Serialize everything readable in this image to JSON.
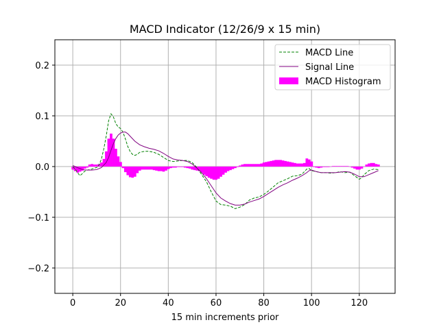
{
  "chart_data": {
    "type": "line",
    "title": "MACD Indicator (12/26/9 x 15 min)",
    "xlabel": "15 min increments prior",
    "ylabel": "",
    "xlim": [
      -7.5,
      135
    ],
    "ylim": [
      -0.25,
      0.25
    ],
    "grid": true,
    "legend_position": "top-right",
    "xticks": [
      0,
      20,
      40,
      60,
      80,
      100,
      120
    ],
    "xtick_labels": [
      "0",
      "20",
      "40",
      "60",
      "80",
      "100",
      "120"
    ],
    "yticks": [
      -0.2,
      -0.1,
      0.0,
      0.1,
      0.2
    ],
    "ytick_labels": [
      "−0.2",
      "−0.1",
      "0.0",
      "0.1",
      "0.2"
    ],
    "series": [
      {
        "name": "MACD Line",
        "kind": "line",
        "style": "dashed",
        "color": "#008000",
        "points": [
          [
            0,
            0
          ],
          [
            1,
            -0.005
          ],
          [
            2,
            -0.012
          ],
          [
            3,
            -0.018
          ],
          [
            4,
            -0.014
          ],
          [
            5,
            -0.009
          ],
          [
            6,
            -0.007
          ],
          [
            7,
            -0.006
          ],
          [
            8,
            -0.005
          ],
          [
            9,
            -0.003
          ],
          [
            10,
            -0.002
          ],
          [
            11,
            0.003
          ],
          [
            12,
            0.015
          ],
          [
            13,
            0.035
          ],
          [
            14,
            0.06
          ],
          [
            15,
            0.09
          ],
          [
            16,
            0.104
          ],
          [
            17,
            0.098
          ],
          [
            18,
            0.085
          ],
          [
            19,
            0.078
          ],
          [
            20,
            0.075
          ],
          [
            21,
            0.068
          ],
          [
            22,
            0.055
          ],
          [
            23,
            0.04
          ],
          [
            24,
            0.03
          ],
          [
            25,
            0.024
          ],
          [
            26,
            0.022
          ],
          [
            27,
            0.024
          ],
          [
            28,
            0.028
          ],
          [
            30,
            0.03
          ],
          [
            32,
            0.03
          ],
          [
            34,
            0.028
          ],
          [
            36,
            0.024
          ],
          [
            38,
            0.018
          ],
          [
            40,
            0.012
          ],
          [
            42,
            0.01
          ],
          [
            44,
            0.011
          ],
          [
            46,
            0.012
          ],
          [
            48,
            0.012
          ],
          [
            50,
            0.008
          ],
          [
            52,
            -0.002
          ],
          [
            54,
            -0.016
          ],
          [
            56,
            -0.03
          ],
          [
            58,
            -0.05
          ],
          [
            60,
            -0.068
          ],
          [
            62,
            -0.075
          ],
          [
            64,
            -0.076
          ],
          [
            66,
            -0.078
          ],
          [
            68,
            -0.083
          ],
          [
            70,
            -0.08
          ],
          [
            72,
            -0.075
          ],
          [
            74,
            -0.066
          ],
          [
            76,
            -0.062
          ],
          [
            78,
            -0.06
          ],
          [
            80,
            -0.055
          ],
          [
            82,
            -0.048
          ],
          [
            84,
            -0.04
          ],
          [
            86,
            -0.032
          ],
          [
            88,
            -0.028
          ],
          [
            90,
            -0.024
          ],
          [
            92,
            -0.019
          ],
          [
            94,
            -0.018
          ],
          [
            96,
            -0.015
          ],
          [
            98,
            -0.005
          ],
          [
            99,
            -0.004
          ],
          [
            100,
            -0.008
          ],
          [
            102,
            -0.01
          ],
          [
            104,
            -0.012
          ],
          [
            106,
            -0.012
          ],
          [
            108,
            -0.013
          ],
          [
            110,
            -0.012
          ],
          [
            112,
            -0.01
          ],
          [
            114,
            -0.012
          ],
          [
            116,
            -0.011
          ],
          [
            118,
            -0.018
          ],
          [
            120,
            -0.025
          ],
          [
            121,
            -0.022
          ],
          [
            122,
            -0.016
          ],
          [
            124,
            -0.008
          ],
          [
            126,
            -0.005
          ],
          [
            128,
            -0.006
          ]
        ]
      },
      {
        "name": "Signal Line",
        "kind": "line",
        "style": "solid",
        "color": "#800080",
        "points": [
          [
            0,
            0.002
          ],
          [
            2,
            -0.002
          ],
          [
            4,
            -0.006
          ],
          [
            6,
            -0.007
          ],
          [
            8,
            -0.007
          ],
          [
            10,
            -0.006
          ],
          [
            12,
            -0.002
          ],
          [
            14,
            0.008
          ],
          [
            15,
            0.018
          ],
          [
            16,
            0.032
          ],
          [
            17,
            0.045
          ],
          [
            18,
            0.055
          ],
          [
            19,
            0.062
          ],
          [
            20,
            0.066
          ],
          [
            21,
            0.068
          ],
          [
            22,
            0.068
          ],
          [
            23,
            0.065
          ],
          [
            24,
            0.06
          ],
          [
            26,
            0.05
          ],
          [
            28,
            0.043
          ],
          [
            30,
            0.039
          ],
          [
            32,
            0.036
          ],
          [
            34,
            0.034
          ],
          [
            36,
            0.031
          ],
          [
            38,
            0.026
          ],
          [
            40,
            0.02
          ],
          [
            42,
            0.015
          ],
          [
            44,
            0.013
          ],
          [
            46,
            0.012
          ],
          [
            48,
            0.01
          ],
          [
            50,
            0.005
          ],
          [
            52,
            -0.003
          ],
          [
            54,
            -0.012
          ],
          [
            56,
            -0.024
          ],
          [
            58,
            -0.038
          ],
          [
            60,
            -0.052
          ],
          [
            62,
            -0.062
          ],
          [
            64,
            -0.068
          ],
          [
            66,
            -0.073
          ],
          [
            68,
            -0.076
          ],
          [
            70,
            -0.076
          ],
          [
            72,
            -0.074
          ],
          [
            74,
            -0.07
          ],
          [
            76,
            -0.067
          ],
          [
            78,
            -0.064
          ],
          [
            80,
            -0.059
          ],
          [
            82,
            -0.053
          ],
          [
            84,
            -0.047
          ],
          [
            86,
            -0.041
          ],
          [
            88,
            -0.036
          ],
          [
            90,
            -0.032
          ],
          [
            92,
            -0.027
          ],
          [
            94,
            -0.023
          ],
          [
            96,
            -0.018
          ],
          [
            98,
            -0.012
          ],
          [
            99,
            -0.008
          ],
          [
            100,
            -0.007
          ],
          [
            102,
            -0.01
          ],
          [
            104,
            -0.012
          ],
          [
            106,
            -0.012
          ],
          [
            108,
            -0.012
          ],
          [
            110,
            -0.012
          ],
          [
            112,
            -0.011
          ],
          [
            114,
            -0.01
          ],
          [
            116,
            -0.011
          ],
          [
            118,
            -0.015
          ],
          [
            120,
            -0.02
          ],
          [
            122,
            -0.02
          ],
          [
            124,
            -0.016
          ],
          [
            126,
            -0.012
          ],
          [
            128,
            -0.008
          ]
        ]
      },
      {
        "name": "MACD Histogram",
        "kind": "bar",
        "color": "#ff00ff",
        "values": [
          -0.006,
          -0.009,
          -0.012,
          -0.01,
          -0.008,
          -0.004,
          -0.002,
          0.004,
          0.005,
          0.004,
          0.004,
          0.005,
          0.008,
          0.015,
          0.03,
          0.055,
          0.065,
          0.055,
          0.035,
          0.02,
          0.009,
          -0.003,
          -0.011,
          -0.017,
          -0.021,
          -0.022,
          -0.02,
          -0.013,
          -0.008,
          -0.006,
          -0.006,
          -0.006,
          -0.006,
          -0.006,
          -0.007,
          -0.008,
          -0.009,
          -0.009,
          -0.01,
          -0.008,
          -0.005,
          -0.003,
          -0.002,
          -0.002,
          -0.001,
          -0.001,
          -0.001,
          -0.002,
          -0.003,
          -0.004,
          -0.006,
          -0.007,
          -0.008,
          -0.009,
          -0.012,
          -0.016,
          -0.019,
          -0.022,
          -0.024,
          -0.026,
          -0.026,
          -0.024,
          -0.02,
          -0.016,
          -0.012,
          -0.009,
          -0.007,
          -0.005,
          -0.003,
          -0.001,
          0.002,
          0.004,
          0.005,
          0.005,
          0.005,
          0.005,
          0.005,
          0.005,
          0.005,
          0.006,
          0.008,
          0.009,
          0.01,
          0.011,
          0.012,
          0.013,
          0.013,
          0.013,
          0.012,
          0.011,
          0.01,
          0.009,
          0.008,
          0.007,
          0.006,
          0.006,
          0.006,
          0.007,
          0.016,
          0.014,
          0.01,
          -0.001,
          -0.002,
          -0.003,
          -0.002,
          -0.001,
          -0.001,
          -0.001,
          0.0,
          0.001,
          0.001,
          0.001,
          0.001,
          0.001,
          0.001,
          0.001,
          0.0,
          -0.002,
          -0.004,
          -0.006,
          -0.006,
          -0.004,
          0.0,
          0.004,
          0.006,
          0.007,
          0.007,
          0.005,
          0.004
        ]
      }
    ]
  }
}
